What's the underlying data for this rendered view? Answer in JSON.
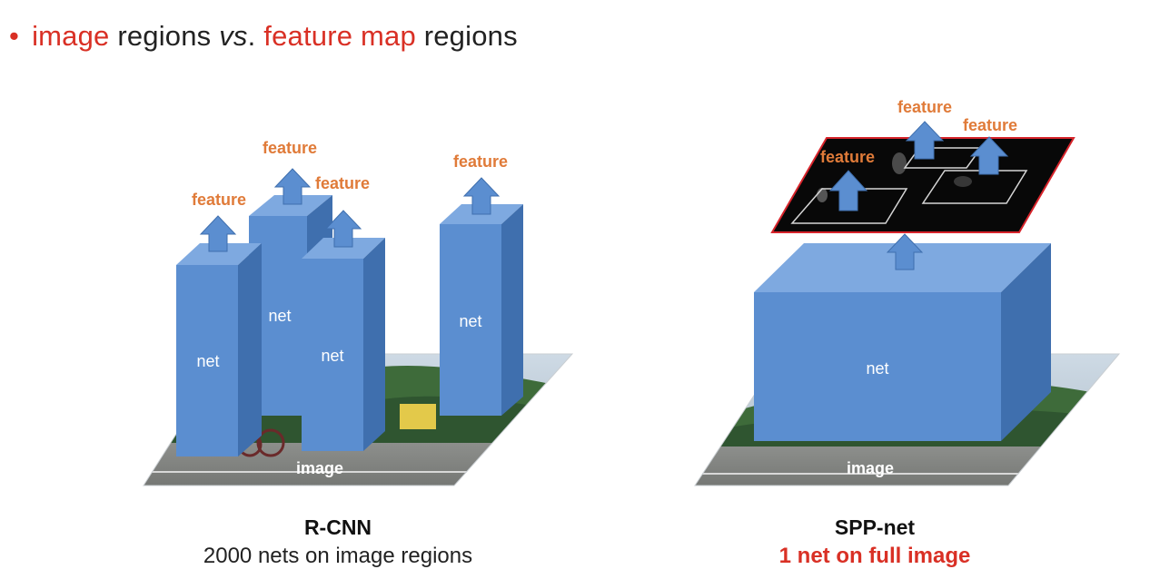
{
  "slide": {
    "title_parts": {
      "bullet": "•",
      "part1": "image",
      "part2": " regions ",
      "part3": "vs",
      "part4": ". ",
      "part5": "feature map",
      "part6": " regions"
    }
  },
  "left": {
    "nodes": {
      "net1": "net",
      "net2": "net",
      "net3": "net",
      "net4": "net",
      "feature1": "feature",
      "feature2": "feature",
      "feature3": "feature",
      "feature4": "feature",
      "image": "image"
    },
    "caption_title": "R-CNN",
    "caption_sub": "2000 nets on image regions"
  },
  "right": {
    "nodes": {
      "net": "net",
      "feature1": "feature",
      "feature2": "feature",
      "feature3": "feature",
      "image": "image"
    },
    "caption_title": "SPP-net",
    "caption_sub": "1 net on full image"
  },
  "colors": {
    "accent_red": "#d93025",
    "feature_orange": "#e07b39",
    "box_front": "#5b8ed0",
    "box_top": "#7ea9e0",
    "box_side": "#3f6fae"
  }
}
